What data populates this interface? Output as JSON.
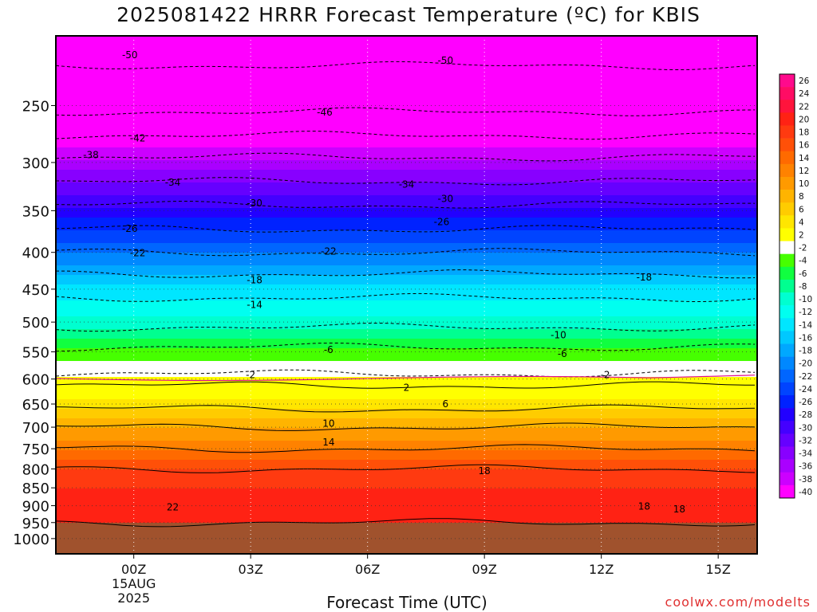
{
  "chart_data": {
    "type": "heatmap",
    "title": "2025081422 HRRR Forecast Temperature (ºC) for KBIS",
    "xlabel": "Forecast Time (UTC)",
    "ylabel": "",
    "credit": "coolwx.com/modelts",
    "x_ticks": [
      "00Z",
      "03Z",
      "06Z",
      "09Z",
      "12Z",
      "15Z"
    ],
    "x_date_line1": "15AUG",
    "x_date_line2": "2025",
    "x_range_hours_from_00Z": [
      -2,
      16
    ],
    "y_axis": "pressure (hPa)",
    "y_ticks": [
      250,
      300,
      350,
      400,
      450,
      500,
      550,
      600,
      650,
      700,
      750,
      800,
      850,
      900,
      950,
      1000
    ],
    "y_range": [
      200,
      1050
    ],
    "colorbar_labels": [
      26,
      24,
      22,
      20,
      18,
      16,
      14,
      12,
      10,
      8,
      6,
      4,
      2,
      -2,
      -4,
      -6,
      -8,
      -10,
      -12,
      -14,
      -16,
      -18,
      -20,
      -22,
      -24,
      -26,
      -28,
      -30,
      -32,
      -34,
      -36,
      -38,
      -40
    ],
    "colorbar_colors": [
      "#ff0a8c",
      "#ff0c64",
      "#ff143c",
      "#ff2214",
      "#ff3a10",
      "#ff5008",
      "#ff6a00",
      "#ff8200",
      "#ff9a00",
      "#ffb400",
      "#ffcc00",
      "#ffe600",
      "#ffff00",
      "#ffffff",
      "#46ff00",
      "#10ff40",
      "#00ff90",
      "#00ffd0",
      "#00fff0",
      "#00e6ff",
      "#00c8ff",
      "#00a8ff",
      "#0088ff",
      "#0066ff",
      "#0044ff",
      "#0022ff",
      "#2200ff",
      "#4400ff",
      "#6600ff",
      "#8800ff",
      "#aa00ff",
      "#cc00ff",
      "#ff00ff"
    ],
    "ground_color": "#a0522d",
    "contour_labels": [
      {
        "text": "-50",
        "h": -0.1,
        "p": 212
      },
      {
        "text": "-50",
        "h": 8.0,
        "p": 216
      },
      {
        "text": "-46",
        "h": 4.9,
        "p": 255
      },
      {
        "text": "-42",
        "h": 0.1,
        "p": 277
      },
      {
        "text": "-38",
        "h": -1.1,
        "p": 292
      },
      {
        "text": "-34",
        "h": 1.0,
        "p": 319
      },
      {
        "text": "-34",
        "h": 7.0,
        "p": 321
      },
      {
        "text": "-30",
        "h": 3.1,
        "p": 341
      },
      {
        "text": "-30",
        "h": 8.0,
        "p": 336
      },
      {
        "text": "-26",
        "h": -0.1,
        "p": 370
      },
      {
        "text": "-26",
        "h": 7.9,
        "p": 362
      },
      {
        "text": "-22",
        "h": 0.1,
        "p": 400
      },
      {
        "text": "-22",
        "h": 5.0,
        "p": 398
      },
      {
        "text": "-18",
        "h": 3.1,
        "p": 436
      },
      {
        "text": "-18",
        "h": 13.1,
        "p": 432
      },
      {
        "text": "-14",
        "h": 3.1,
        "p": 472
      },
      {
        "text": "-10",
        "h": 10.9,
        "p": 520
      },
      {
        "text": "-6",
        "h": 5.0,
        "p": 545
      },
      {
        "text": "-6",
        "h": 11.0,
        "p": 552
      },
      {
        "text": "-2",
        "h": 3.0,
        "p": 591
      },
      {
        "text": "-2",
        "h": 12.1,
        "p": 591
      },
      {
        "text": "2",
        "h": 7.0,
        "p": 615
      },
      {
        "text": "6",
        "h": 8.0,
        "p": 648
      },
      {
        "text": "10",
        "h": 5.0,
        "p": 690
      },
      {
        "text": "14",
        "h": 5.0,
        "p": 733
      },
      {
        "text": "18",
        "h": 9.0,
        "p": 803
      },
      {
        "text": "18",
        "h": 13.1,
        "p": 900
      },
      {
        "text": "18",
        "h": 14.0,
        "p": 908
      },
      {
        "text": "22",
        "h": 1.0,
        "p": 902
      }
    ]
  }
}
